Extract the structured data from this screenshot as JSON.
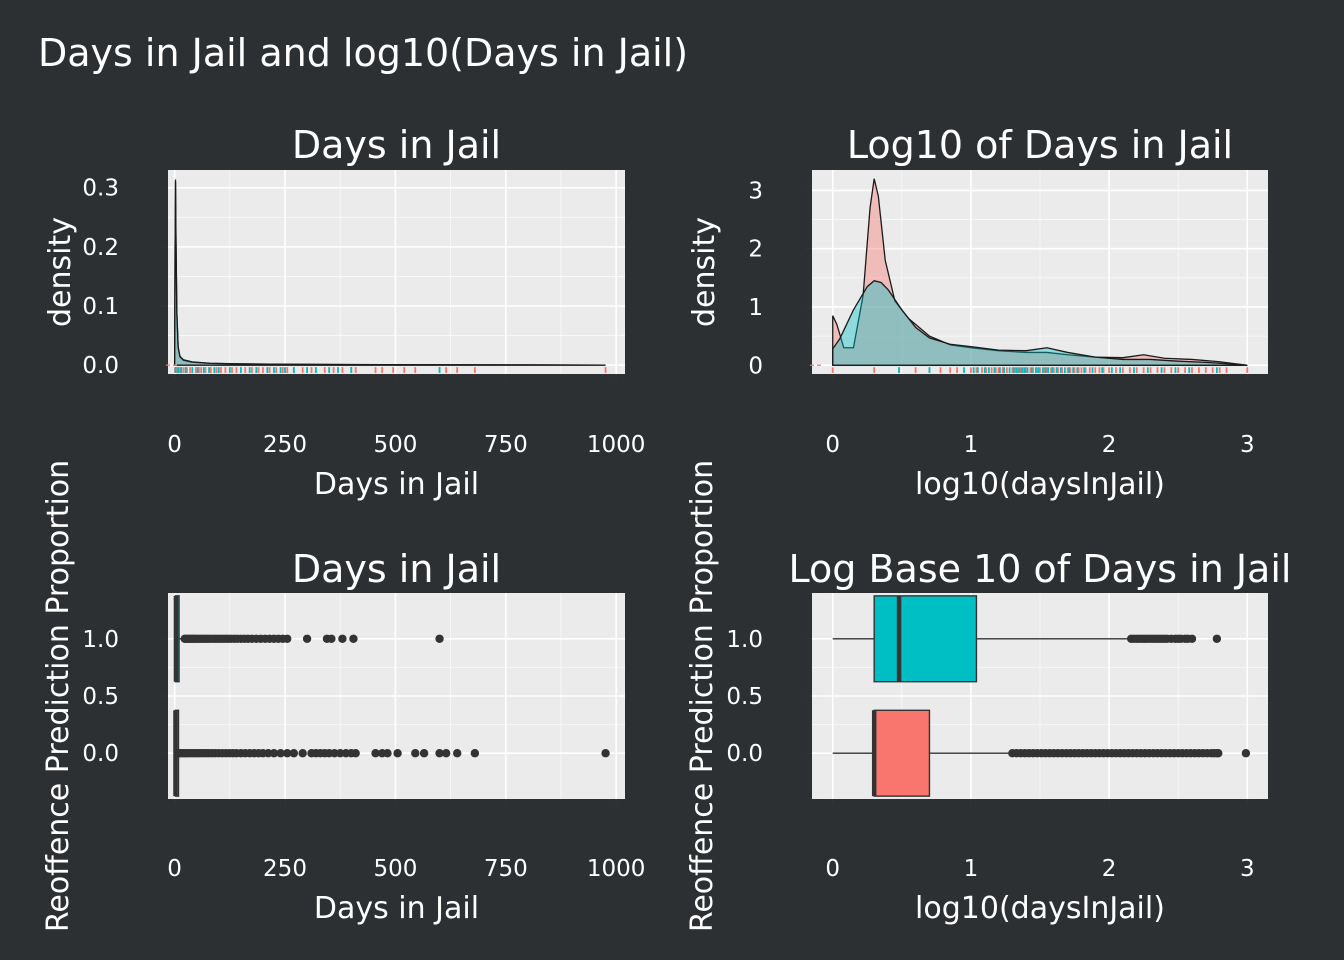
{
  "page_title": "Days in Jail and log10(Days in Jail)",
  "colors": {
    "background": "#2d3032",
    "panel": "#ebebeb",
    "grid": "#ffffff",
    "group_0": "#f8766d",
    "group_1": "#00bfc4"
  },
  "chart_data": [
    {
      "type": "density",
      "title": "Days in Jail",
      "xlabel": "Days in Jail",
      "ylabel": "density",
      "xlim": [
        -15,
        1020
      ],
      "ylim": [
        -0.015,
        0.33
      ],
      "xticks": [
        0,
        250,
        500,
        750,
        1000
      ],
      "xtick_labels": [
        "0",
        "250",
        "500",
        "750",
        "1000"
      ],
      "yticks": [
        0,
        0.1,
        0.2,
        0.3
      ],
      "ytick_labels": [
        "0.0",
        "0.1",
        "0.2",
        "0.3"
      ],
      "series": [
        {
          "group": "0",
          "color": "#f8766d",
          "x": [
            0,
            1,
            2,
            3,
            5,
            8,
            12,
            20,
            40,
            80,
            150,
            250,
            400,
            600,
            800,
            976
          ],
          "y": [
            0.005,
            0.2,
            0.314,
            0.22,
            0.09,
            0.03,
            0.014,
            0.008,
            0.005,
            0.003,
            0.002,
            0.0015,
            0.001,
            0.0006,
            0.0003,
            0
          ]
        },
        {
          "group": "1",
          "color": "#00bfc4",
          "x": [
            0,
            1,
            2,
            3,
            5,
            8,
            12,
            20,
            40,
            80,
            150,
            250,
            400,
            600,
            800,
            976
          ],
          "y": [
            0.004,
            0.19,
            0.31,
            0.21,
            0.088,
            0.03,
            0.015,
            0.009,
            0.0055,
            0.0032,
            0.0021,
            0.0014,
            0.0009,
            0.0005,
            0.0003,
            0
          ]
        }
      ],
      "rug": {
        "group_0": [
          1,
          3,
          5,
          12,
          20,
          28,
          35,
          48,
          55,
          60,
          70,
          82,
          95,
          105,
          115,
          130,
          140,
          160,
          175,
          190,
          200,
          215,
          230,
          245,
          255,
          270,
          290,
          310,
          340,
          360,
          380,
          400,
          410,
          455,
          470,
          495,
          520,
          545,
          600,
          615,
          640,
          680,
          976
        ],
        "group_1": [
          2,
          8,
          15,
          25,
          40,
          52,
          66,
          78,
          90,
          100,
          125,
          150,
          170,
          185,
          210,
          225,
          240,
          250,
          270,
          300,
          320,
          350,
          370,
          400,
          600
        ]
      }
    },
    {
      "type": "density",
      "title": "Log10 of Days in Jail",
      "xlabel": "log10(daysInJail)",
      "ylabel": "density",
      "xlim": [
        -0.15,
        3.15
      ],
      "ylim": [
        -0.15,
        3.35
      ],
      "xticks": [
        0,
        1,
        2,
        3
      ],
      "xtick_labels": [
        "0",
        "1",
        "2",
        "3"
      ],
      "yticks": [
        0,
        1,
        2,
        3
      ],
      "ytick_labels": [
        "0",
        "1",
        "2",
        "3"
      ],
      "series": [
        {
          "group": "0",
          "color": "#f8766d",
          "x": [
            0,
            0.03,
            0.08,
            0.15,
            0.22,
            0.27,
            0.3,
            0.33,
            0.38,
            0.45,
            0.55,
            0.7,
            0.85,
            1.0,
            1.2,
            1.4,
            1.55,
            1.7,
            1.9,
            2.1,
            2.25,
            2.4,
            2.6,
            2.8,
            3.0
          ],
          "y": [
            0.85,
            0.7,
            0.3,
            0.3,
            1.2,
            2.7,
            3.2,
            2.9,
            1.8,
            1.1,
            0.8,
            0.5,
            0.35,
            0.3,
            0.25,
            0.22,
            0.22,
            0.18,
            0.14,
            0.13,
            0.18,
            0.12,
            0.1,
            0.06,
            0
          ]
        },
        {
          "group": "1",
          "color": "#00bfc4",
          "x": [
            0,
            0.05,
            0.1,
            0.15,
            0.2,
            0.25,
            0.3,
            0.35,
            0.4,
            0.5,
            0.6,
            0.7,
            0.85,
            1.0,
            1.2,
            1.4,
            1.55,
            1.7,
            1.9,
            2.1,
            2.3,
            2.5,
            2.7,
            2.9,
            3.0
          ],
          "y": [
            0.28,
            0.45,
            0.7,
            0.95,
            1.15,
            1.35,
            1.45,
            1.42,
            1.3,
            0.95,
            0.65,
            0.47,
            0.36,
            0.32,
            0.26,
            0.25,
            0.3,
            0.22,
            0.14,
            0.1,
            0.1,
            0.07,
            0.05,
            0.02,
            0
          ]
        }
      ],
      "rug": {
        "group_0": [
          0,
          0.3,
          0.48,
          0.6,
          0.7,
          0.78,
          0.85,
          0.9,
          1.0,
          1.04,
          1.08,
          1.11,
          1.15,
          1.18,
          1.2,
          1.23,
          1.26,
          1.3,
          1.32,
          1.34,
          1.36,
          1.38,
          1.4,
          1.43,
          1.45,
          1.48,
          1.5,
          1.53,
          1.55,
          1.58,
          1.6,
          1.63,
          1.66,
          1.7,
          1.72,
          1.75,
          1.78,
          1.8,
          1.83,
          1.86,
          1.9,
          1.93,
          1.96,
          2.0,
          2.05,
          2.1,
          2.15,
          2.2,
          2.25,
          2.3,
          2.35,
          2.4,
          2.45,
          2.5,
          2.55,
          2.6,
          2.65,
          2.7,
          2.75,
          2.8,
          2.85,
          3.0
        ],
        "group_1": [
          0.48,
          0.7,
          0.95,
          1.02,
          1.05,
          1.1,
          1.13,
          1.17,
          1.21,
          1.24,
          1.28,
          1.31,
          1.33,
          1.35,
          1.37,
          1.39,
          1.41,
          1.44,
          1.47,
          1.49,
          1.52,
          1.54,
          1.56,
          1.59,
          1.62,
          1.65,
          1.68,
          1.71,
          1.74,
          1.77,
          1.82,
          1.88,
          1.95,
          2.02,
          2.08,
          2.18,
          2.28,
          2.38,
          2.48,
          2.58,
          2.78
        ]
      }
    },
    {
      "type": "boxplot",
      "orientation": "horizontal",
      "title": "Days in Jail",
      "xlabel": "Days in Jail",
      "ylabel": "Reoffence Prediction Proportion",
      "xlim": [
        -15,
        1020
      ],
      "ylim": [
        -0.4,
        1.4
      ],
      "xticks": [
        0,
        250,
        500,
        750,
        1000
      ],
      "xtick_labels": [
        "0",
        "250",
        "500",
        "750",
        "1000"
      ],
      "yticks": [
        0,
        0.5,
        1
      ],
      "ytick_labels": [
        "0.0",
        "0.5",
        "1.0"
      ],
      "boxes": [
        {
          "group": 1,
          "fill": "#00bfc4",
          "q1": 2,
          "median": 3,
          "q3": 10,
          "whisker_low": 0,
          "whisker_high": 22,
          "outliers": [
            23,
            26,
            30,
            34,
            38,
            42,
            46,
            50,
            55,
            60,
            65,
            70,
            75,
            80,
            86,
            92,
            98,
            104,
            110,
            116,
            122,
            128,
            135,
            142,
            150,
            158,
            166,
            175,
            185,
            195,
            205,
            215,
            225,
            235,
            245,
            255,
            300,
            345,
            355,
            380,
            405,
            600
          ]
        },
        {
          "group": 0,
          "fill": "#f8766d",
          "q1": 2,
          "median": 2,
          "q3": 4,
          "whisker_low": 0,
          "whisker_high": 7,
          "outliers": [
            8,
            11,
            14,
            18,
            22,
            26,
            30,
            35,
            40,
            45,
            50,
            55,
            60,
            66,
            72,
            78,
            85,
            92,
            100,
            108,
            116,
            124,
            132,
            140,
            150,
            160,
            170,
            180,
            190,
            200,
            212,
            225,
            240,
            255,
            270,
            290,
            310,
            320,
            330,
            340,
            350,
            362,
            375,
            388,
            400,
            410,
            455,
            470,
            482,
            505,
            545,
            565,
            600,
            615,
            640,
            680,
            976
          ]
        }
      ]
    },
    {
      "type": "boxplot",
      "orientation": "horizontal",
      "title": "Log Base 10 of Days in Jail",
      "xlabel": "log10(daysInJail)",
      "ylabel": "Reoffence Prediction Proportion",
      "xlim": [
        -0.15,
        3.15
      ],
      "ylim": [
        -0.4,
        1.4
      ],
      "xticks": [
        0,
        1,
        2,
        3
      ],
      "xtick_labels": [
        "0",
        "1",
        "2",
        "3"
      ],
      "yticks": [
        0,
        0.5,
        1
      ],
      "ytick_labels": [
        "0.0",
        "0.5",
        "1.0"
      ],
      "boxes": [
        {
          "group": 1,
          "fill": "#00bfc4",
          "q1": 0.3,
          "median": 0.48,
          "q3": 1.04,
          "whisker_low": 0,
          "whisker_high": 2.15,
          "outliers": [
            2.16,
            2.18,
            2.2,
            2.22,
            2.24,
            2.26,
            2.28,
            2.3,
            2.32,
            2.34,
            2.36,
            2.38,
            2.4,
            2.42,
            2.45,
            2.48,
            2.5,
            2.52,
            2.55,
            2.57,
            2.6,
            2.78
          ]
        },
        {
          "group": 0,
          "fill": "#f8766d",
          "q1": 0.3,
          "median": 0.3,
          "q3": 0.7,
          "whisker_low": 0,
          "whisker_high": 1.29,
          "outliers": [
            1.3,
            1.33,
            1.36,
            1.39,
            1.42,
            1.45,
            1.48,
            1.51,
            1.54,
            1.57,
            1.6,
            1.63,
            1.66,
            1.69,
            1.72,
            1.75,
            1.78,
            1.81,
            1.84,
            1.87,
            1.9,
            1.93,
            1.96,
            1.99,
            2.02,
            2.05,
            2.08,
            2.11,
            2.14,
            2.17,
            2.2,
            2.23,
            2.26,
            2.29,
            2.32,
            2.35,
            2.38,
            2.41,
            2.44,
            2.47,
            2.5,
            2.53,
            2.56,
            2.59,
            2.62,
            2.65,
            2.68,
            2.71,
            2.74,
            2.76,
            2.78,
            2.79,
            2.99
          ]
        }
      ]
    }
  ]
}
